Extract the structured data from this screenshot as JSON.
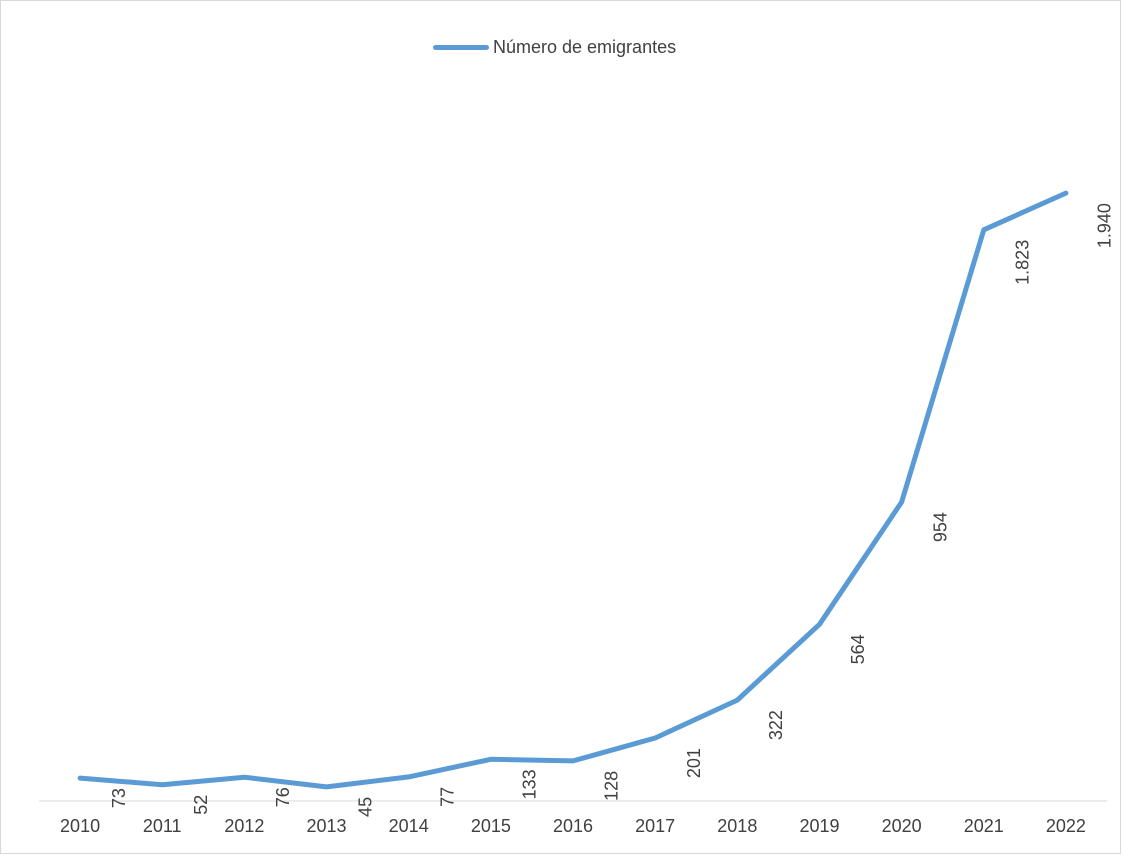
{
  "chart_data": {
    "type": "line",
    "title": "",
    "xlabel": "",
    "ylabel": "",
    "categories": [
      "2010",
      "2011",
      "2012",
      "2013",
      "2014",
      "2015",
      "2016",
      "2017",
      "2018",
      "2019",
      "2020",
      "2021",
      "2022"
    ],
    "series": [
      {
        "name": "Número de emigrantes",
        "color": "#5b9bd5",
        "values": [
          73,
          52,
          76,
          45,
          77,
          133,
          128,
          201,
          322,
          564,
          954,
          1823,
          1940
        ],
        "labels": [
          "73",
          "52",
          "76",
          "45",
          "77",
          "133",
          "128",
          "201",
          "322",
          "564",
          "954",
          "1.823",
          "1.940"
        ]
      }
    ],
    "ylim": [
      0,
      2400
    ],
    "grid": false,
    "legend": "top-center",
    "data_label_orientation": "vertical"
  }
}
